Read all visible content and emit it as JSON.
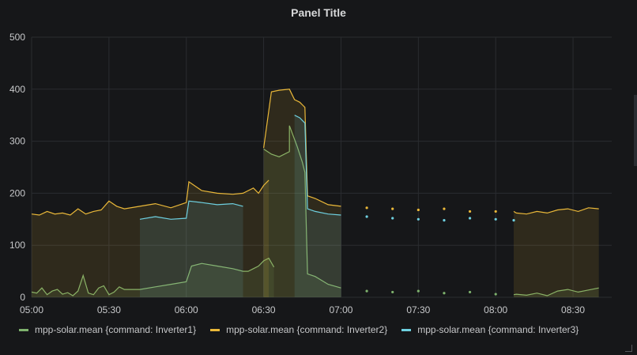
{
  "panel": {
    "title": "Panel Title"
  },
  "chart_data": {
    "type": "line",
    "title": "Panel Title",
    "xlabel": "",
    "ylabel": "",
    "x_range": [
      "05:00",
      "08:45"
    ],
    "ylim": [
      0,
      500
    ],
    "yticks": [
      0,
      100,
      200,
      300,
      400,
      500
    ],
    "xticks": [
      "05:00",
      "05:30",
      "06:00",
      "06:30",
      "07:00",
      "07:30",
      "08:00",
      "08:30"
    ],
    "grid": true,
    "legend_position": "bottom-left",
    "series": [
      {
        "name": "mpp-solar.mean {command: Inverter1}",
        "color": "#7eb26d",
        "points": [
          [
            "05:00",
            10
          ],
          [
            "05:02",
            8
          ],
          [
            "05:04",
            18
          ],
          [
            "05:06",
            5
          ],
          [
            "05:08",
            12
          ],
          [
            "05:10",
            15
          ],
          [
            "05:12",
            6
          ],
          [
            "05:14",
            9
          ],
          [
            "05:16",
            3
          ],
          [
            "05:18",
            12
          ],
          [
            "05:20",
            42
          ],
          [
            "05:22",
            8
          ],
          [
            "05:24",
            5
          ],
          [
            "05:26",
            18
          ],
          [
            "05:28",
            22
          ],
          [
            "05:30",
            5
          ],
          [
            "05:32",
            10
          ],
          [
            "05:34",
            20
          ],
          [
            "05:36",
            15
          ],
          [
            "05:42",
            15
          ],
          [
            "05:48",
            20
          ],
          [
            "05:54",
            25
          ],
          [
            "06:00",
            30
          ],
          [
            "06:02",
            60
          ],
          [
            "06:06",
            65
          ],
          [
            "06:12",
            60
          ],
          [
            "06:18",
            55
          ],
          [
            "06:22",
            50
          ],
          [
            "06:24",
            50
          ],
          [
            "06:26",
            55
          ],
          [
            "06:28",
            60
          ],
          [
            "06:30",
            70
          ],
          [
            "06:32",
            75
          ],
          [
            "06:34",
            58
          ],
          [
            "06:30",
            285
          ],
          [
            "06:33",
            275
          ],
          [
            "06:36",
            270
          ],
          [
            "06:40",
            280
          ],
          [
            "06:40",
            330
          ],
          [
            "06:43",
            290
          ],
          [
            "06:45",
            260
          ],
          [
            "06:46",
            240
          ],
          [
            "06:47",
            45
          ],
          [
            "06:50",
            40
          ],
          [
            "06:55",
            25
          ],
          [
            "07:00",
            18
          ],
          [
            "07:10",
            12
          ],
          [
            "07:20",
            10
          ],
          [
            "07:30",
            12
          ],
          [
            "07:40",
            8
          ],
          [
            "07:50",
            10
          ],
          [
            "08:00",
            6
          ],
          [
            "08:07",
            5
          ],
          [
            "08:08",
            6
          ],
          [
            "08:12",
            4
          ],
          [
            "08:16",
            8
          ],
          [
            "08:20",
            3
          ],
          [
            "08:24",
            12
          ],
          [
            "08:28",
            15
          ],
          [
            "08:32",
            10
          ],
          [
            "08:36",
            14
          ],
          [
            "08:40",
            18
          ]
        ]
      },
      {
        "name": "mpp-solar.mean {command: Inverter2}",
        "color": "#eab839",
        "points": [
          [
            "05:00",
            160
          ],
          [
            "05:03",
            158
          ],
          [
            "05:06",
            165
          ],
          [
            "05:09",
            160
          ],
          [
            "05:12",
            162
          ],
          [
            "05:15",
            158
          ],
          [
            "05:18",
            170
          ],
          [
            "05:21",
            160
          ],
          [
            "05:24",
            165
          ],
          [
            "05:27",
            168
          ],
          [
            "05:30",
            185
          ],
          [
            "05:33",
            175
          ],
          [
            "05:36",
            170
          ],
          [
            "05:42",
            175
          ],
          [
            "05:48",
            180
          ],
          [
            "05:54",
            172
          ],
          [
            "06:00",
            182
          ],
          [
            "06:01",
            222
          ],
          [
            "06:06",
            205
          ],
          [
            "06:12",
            200
          ],
          [
            "06:18",
            198
          ],
          [
            "06:22",
            200
          ],
          [
            "06:24",
            205
          ],
          [
            "06:26",
            210
          ],
          [
            "06:28",
            200
          ],
          [
            "06:30",
            215
          ],
          [
            "06:32",
            225
          ],
          [
            "06:30",
            287
          ],
          [
            "06:33",
            395
          ],
          [
            "06:36",
            398
          ],
          [
            "06:40",
            400
          ],
          [
            "06:42",
            380
          ],
          [
            "06:44",
            375
          ],
          [
            "06:45",
            370
          ],
          [
            "06:46",
            365
          ],
          [
            "06:47",
            195
          ],
          [
            "06:50",
            190
          ],
          [
            "06:55",
            178
          ],
          [
            "07:00",
            175
          ],
          [
            "07:10",
            172
          ],
          [
            "07:20",
            170
          ],
          [
            "07:30",
            168
          ],
          [
            "07:40",
            170
          ],
          [
            "07:50",
            165
          ],
          [
            "08:00",
            165
          ],
          [
            "08:07",
            165
          ],
          [
            "08:08",
            162
          ],
          [
            "08:12",
            160
          ],
          [
            "08:16",
            165
          ],
          [
            "08:20",
            162
          ],
          [
            "08:24",
            168
          ],
          [
            "08:28",
            170
          ],
          [
            "08:32",
            165
          ],
          [
            "08:36",
            172
          ],
          [
            "08:40",
            170
          ]
        ]
      },
      {
        "name": "mpp-solar.mean {command: Inverter3}",
        "color": "#6ed0e0",
        "points": [
          [
            "05:42",
            150
          ],
          [
            "05:48",
            155
          ],
          [
            "05:54",
            150
          ],
          [
            "06:00",
            152
          ],
          [
            "06:01",
            185
          ],
          [
            "06:06",
            182
          ],
          [
            "06:12",
            178
          ],
          [
            "06:18",
            180
          ],
          [
            "06:22",
            175
          ],
          [
            "06:42",
            350
          ],
          [
            "06:44",
            345
          ],
          [
            "06:45",
            340
          ],
          [
            "06:46",
            335
          ],
          [
            "06:47",
            170
          ],
          [
            "06:50",
            165
          ],
          [
            "06:55",
            160
          ],
          [
            "07:00",
            158
          ],
          [
            "07:10",
            155
          ],
          [
            "07:20",
            152
          ],
          [
            "07:30",
            150
          ],
          [
            "07:40",
            148
          ],
          [
            "07:50",
            152
          ],
          [
            "08:00",
            150
          ],
          [
            "08:07",
            148
          ]
        ]
      }
    ]
  }
}
